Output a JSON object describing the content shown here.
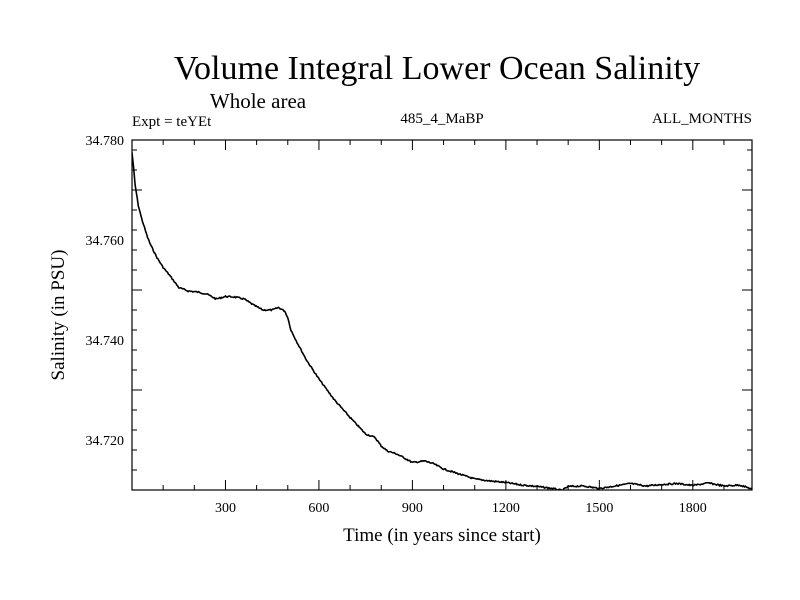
{
  "chart_data": {
    "type": "line",
    "title": "Volume Integral Lower Ocean Salinity",
    "subtitle": "Whole area",
    "expt_label": "Expt = teYEt",
    "run_label": "485_4_MaBP",
    "months_label": "ALL_MONTHS",
    "xlabel": "Time (in years since start)",
    "ylabel": "Salinity (in PSU)",
    "xlim": [
      0,
      1990
    ],
    "ylim": [
      34.71,
      34.78
    ],
    "x_ticks": [
      300,
      600,
      900,
      1200,
      1500,
      1800
    ],
    "x_tick_labels": [
      "300",
      "600",
      "900",
      "1200",
      "1500",
      "1800"
    ],
    "y_ticks": [
      34.72,
      34.74,
      34.76,
      34.78
    ],
    "y_tick_labels": [
      "34.720",
      "34.740",
      "34.760",
      "34.780"
    ],
    "series": [
      {
        "name": "Salinity",
        "x": [
          0,
          5,
          10,
          20,
          30,
          40,
          50,
          60,
          80,
          100,
          120,
          150,
          180,
          210,
          240,
          270,
          300,
          330,
          360,
          390,
          420,
          450,
          470,
          490,
          500,
          510,
          530,
          560,
          600,
          650,
          700,
          750,
          780,
          800,
          820,
          850,
          880,
          900,
          940,
          970,
          1000,
          1050,
          1100,
          1150,
          1200,
          1250,
          1300,
          1350,
          1380,
          1400,
          1450,
          1500,
          1550,
          1600,
          1650,
          1700,
          1750,
          1800,
          1850,
          1900,
          1950,
          1990
        ],
        "y": [
          34.7775,
          34.7745,
          34.771,
          34.767,
          34.7645,
          34.7625,
          34.7605,
          34.759,
          34.7565,
          34.7545,
          34.753,
          34.7505,
          34.7498,
          34.7496,
          34.7492,
          34.7482,
          34.7487,
          34.7486,
          34.7482,
          34.747,
          34.746,
          34.746,
          34.7465,
          34.7458,
          34.7445,
          34.742,
          34.7395,
          34.736,
          34.7322,
          34.728,
          34.7245,
          34.7212,
          34.7205,
          34.7188,
          34.7178,
          34.7172,
          34.7162,
          34.7155,
          34.7158,
          34.7152,
          34.7142,
          34.7132,
          34.7122,
          34.7118,
          34.7115,
          34.711,
          34.7107,
          34.7103,
          34.7099,
          34.7107,
          34.7108,
          34.7103,
          34.7108,
          34.7113,
          34.7108,
          34.7111,
          34.7113,
          34.7109,
          34.7114,
          34.7108,
          34.711,
          34.7102
        ]
      }
    ]
  }
}
